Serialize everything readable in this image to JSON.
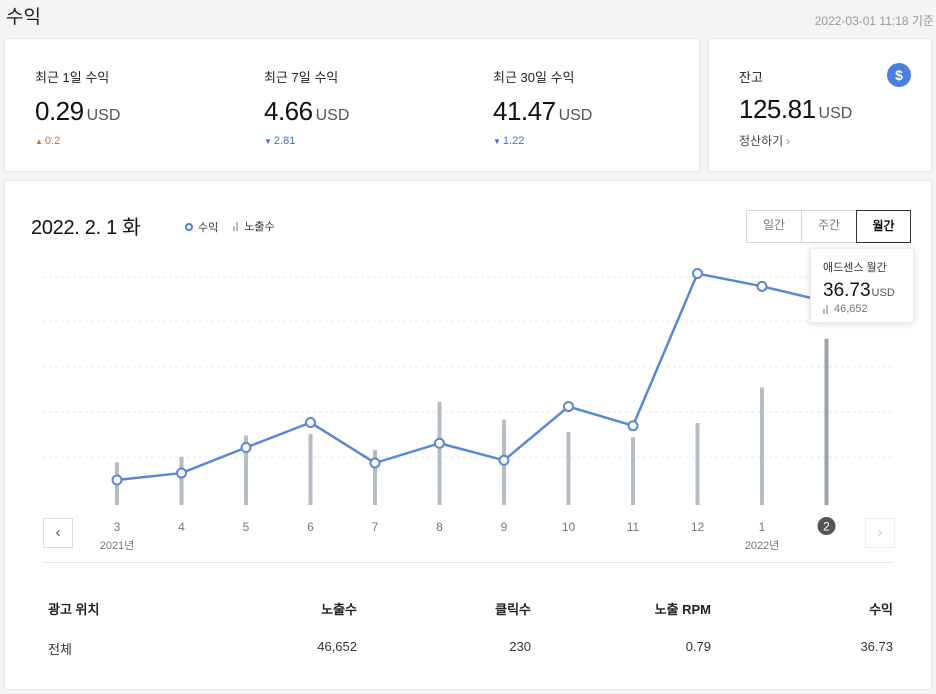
{
  "header": {
    "title": "수익",
    "timestamp": "2022-03-01 11:18 기준"
  },
  "summary": {
    "stats": [
      {
        "label": "최근 1일 수익",
        "value": "0.29",
        "unit": "USD",
        "change": "0.2",
        "direction": "up",
        "arrow": "▲"
      },
      {
        "label": "최근 7일 수익",
        "value": "4.66",
        "unit": "USD",
        "change": "2.81",
        "direction": "down",
        "arrow": "▼"
      },
      {
        "label": "최근 30일 수익",
        "value": "41.47",
        "unit": "USD",
        "change": "1.22",
        "direction": "down",
        "arrow": "▼"
      }
    ]
  },
  "balance": {
    "label": "잔고",
    "value": "125.81",
    "unit": "USD",
    "icon_symbol": "$",
    "settle_label": "정산하기",
    "chevron": "›"
  },
  "chart": {
    "date_label": "2022. 2. 1 화",
    "legend": {
      "revenue": "수익",
      "impressions": "노출수"
    },
    "periods": [
      {
        "label": "일간",
        "active": false
      },
      {
        "label": "주간",
        "active": false
      },
      {
        "label": "월간",
        "active": true
      }
    ],
    "nav_prev": "‹",
    "nav_next": "›",
    "tooltip": {
      "title": "애드센스 월간",
      "value": "36.73",
      "unit": "USD",
      "impressions": "46,652"
    }
  },
  "chart_data": {
    "type": "line",
    "categories": [
      "3",
      "4",
      "5",
      "6",
      "7",
      "8",
      "9",
      "10",
      "11",
      "12",
      "1",
      "2"
    ],
    "year_labels": [
      {
        "index": 0,
        "label": "2021년"
      },
      {
        "index": 10,
        "label": "2022년"
      }
    ],
    "selected_index": 11,
    "series": [
      {
        "name": "수익",
        "values": [
          3.2,
          4.5,
          9.3,
          14.0,
          6.4,
          10.1,
          6.9,
          17.0,
          13.4,
          42.0,
          39.6,
          36.73
        ]
      },
      {
        "name": "노출수",
        "values": [
          12000,
          13500,
          19500,
          20000,
          15500,
          29000,
          24000,
          20500,
          19000,
          23000,
          33000,
          46652
        ]
      }
    ],
    "grid": true,
    "colors": {
      "line": "#5a87d6",
      "bar": "#b4bcc4",
      "bar_selected": "#9aa3ad"
    }
  },
  "table": {
    "headers": [
      "광고 위치",
      "노출수",
      "클릭수",
      "노출 RPM",
      "수익"
    ],
    "rows": [
      [
        "전체",
        "46,652",
        "230",
        "0.79",
        "36.73"
      ]
    ]
  }
}
